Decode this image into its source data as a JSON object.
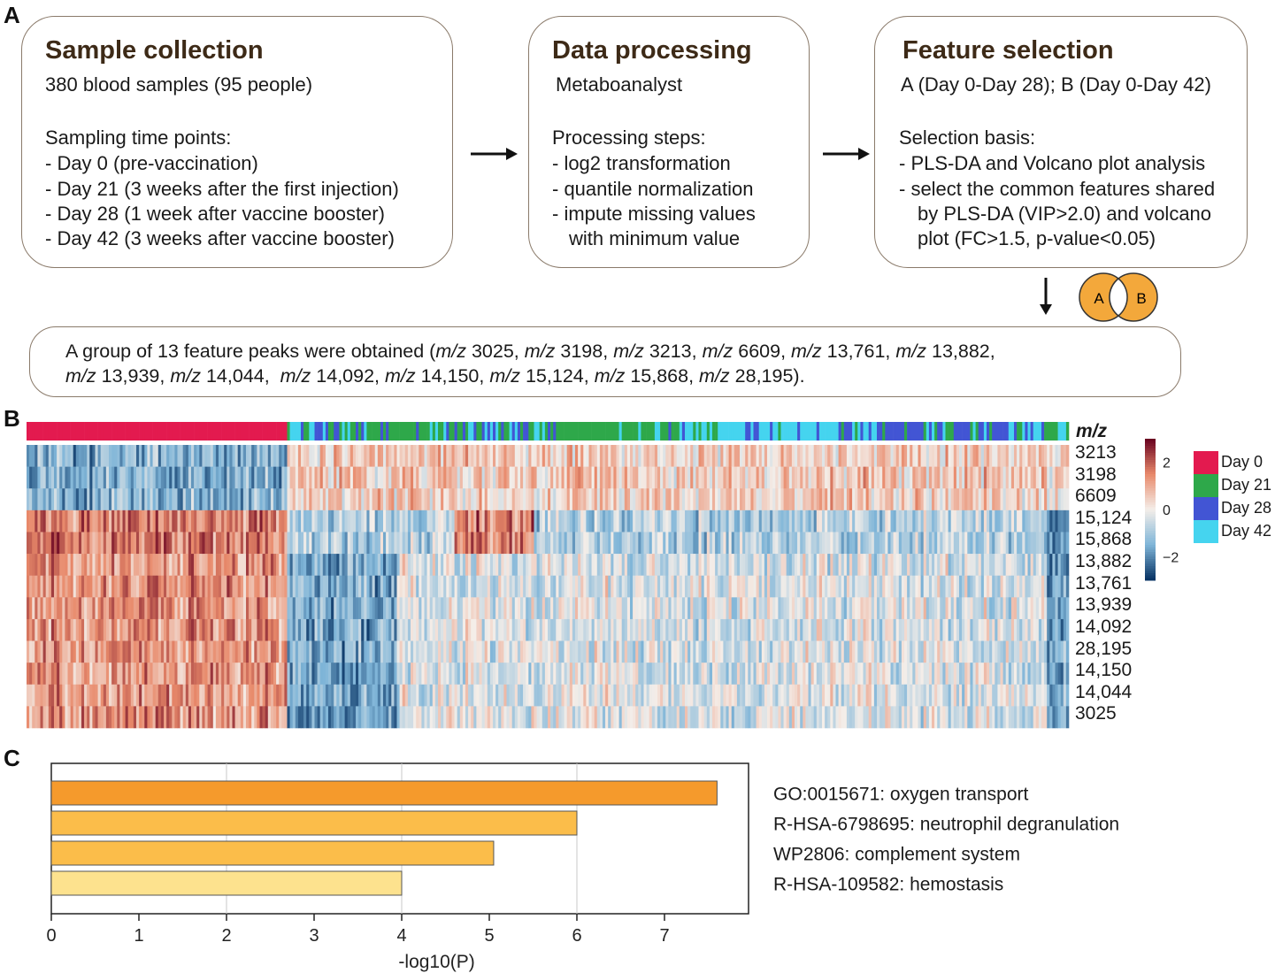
{
  "panels": {
    "a": "A",
    "b": "B",
    "c": "C"
  },
  "flowchart": {
    "sample_collection": {
      "title": "Sample collection",
      "line1": "380 blood samples (95 people)",
      "line2": "Sampling time points:",
      "line3": "- Day 0 (pre-vaccination)",
      "line4": "- Day 21 (3 weeks after the first injection)",
      "line5": "- Day 28 (1 week after vaccine booster)",
      "line6": "- Day 42 (3 weeks after vaccine booster)"
    },
    "data_processing": {
      "title": "Data processing",
      "line1": "Metaboanalyst",
      "line2": "Processing steps:",
      "line3": "- log2 transformation",
      "line4": "- quantile normalization",
      "line5": "- impute missing values",
      "line6": "with minimum value"
    },
    "feature_selection": {
      "title": "Feature selection",
      "line1": "A (Day 0-Day 28); B (Day 0-Day 42)",
      "line2": "Selection basis:",
      "line3": "- PLS-DA and Volcano plot analysis",
      "line4": "- select the common features shared",
      "line5": "by PLS-DA (VIP>2.0) and volcano",
      "line6": "plot (FC>1.5, p-value<0.05)"
    },
    "venn": {
      "a": "A",
      "b": "B"
    },
    "result": {
      "prefix": "A group of 13 feature peaks were obtained (",
      "mz_label": "m/z",
      "line1_peaks": [
        "3025,",
        "3198,",
        "3213,",
        "6609,",
        "13,761,",
        "13,882,"
      ],
      "line2_peaks": [
        "13,939,",
        "14,044,",
        "14,092,",
        "14,150,",
        "15,124,",
        "15,868,",
        "28,195)."
      ]
    }
  },
  "heatmap": {
    "mz_header": "m/z",
    "rows": [
      "3213",
      "3198",
      "6609",
      "15,124",
      "15,868",
      "13,882",
      "13,761",
      "13,939",
      "14,092",
      "28,195",
      "14,150",
      "14,044",
      "3025"
    ],
    "groups": [
      {
        "name": "Day 0",
        "color": "#e31a4f"
      },
      {
        "name": "Day 21",
        "color": "#2ea84a"
      },
      {
        "name": "Day 28",
        "color": "#4255d4"
      },
      {
        "name": "Day 42",
        "color": "#45d4ef"
      }
    ],
    "scale": {
      "max": "2",
      "mid": "0",
      "min": "−2",
      "range": [
        -3,
        3
      ]
    },
    "colors": {
      "high": "#67001f",
      "mid_high": "#e8896a",
      "mid": "#f4eee9",
      "mid_low": "#7fb5d8",
      "low": "#053061"
    }
  },
  "chart_data": {
    "type": "bar",
    "orientation": "horizontal",
    "categories": [
      "GO:0015671: oxygen transport",
      "R-HSA-6798695: neutrophil degranulation",
      "WP2806: complement system",
      "R-HSA-109582: hemostasis"
    ],
    "values": [
      7.6,
      6.0,
      5.05,
      4.0
    ],
    "bar_colors": [
      "#f59a2c",
      "#fbbd4a",
      "#fbbd4a",
      "#fde28e"
    ],
    "xlabel": "-log10(P)",
    "xlim": [
      0,
      8
    ],
    "xticks": [
      "0",
      "1",
      "2",
      "3",
      "4",
      "5",
      "6",
      "7"
    ],
    "grid": true
  }
}
